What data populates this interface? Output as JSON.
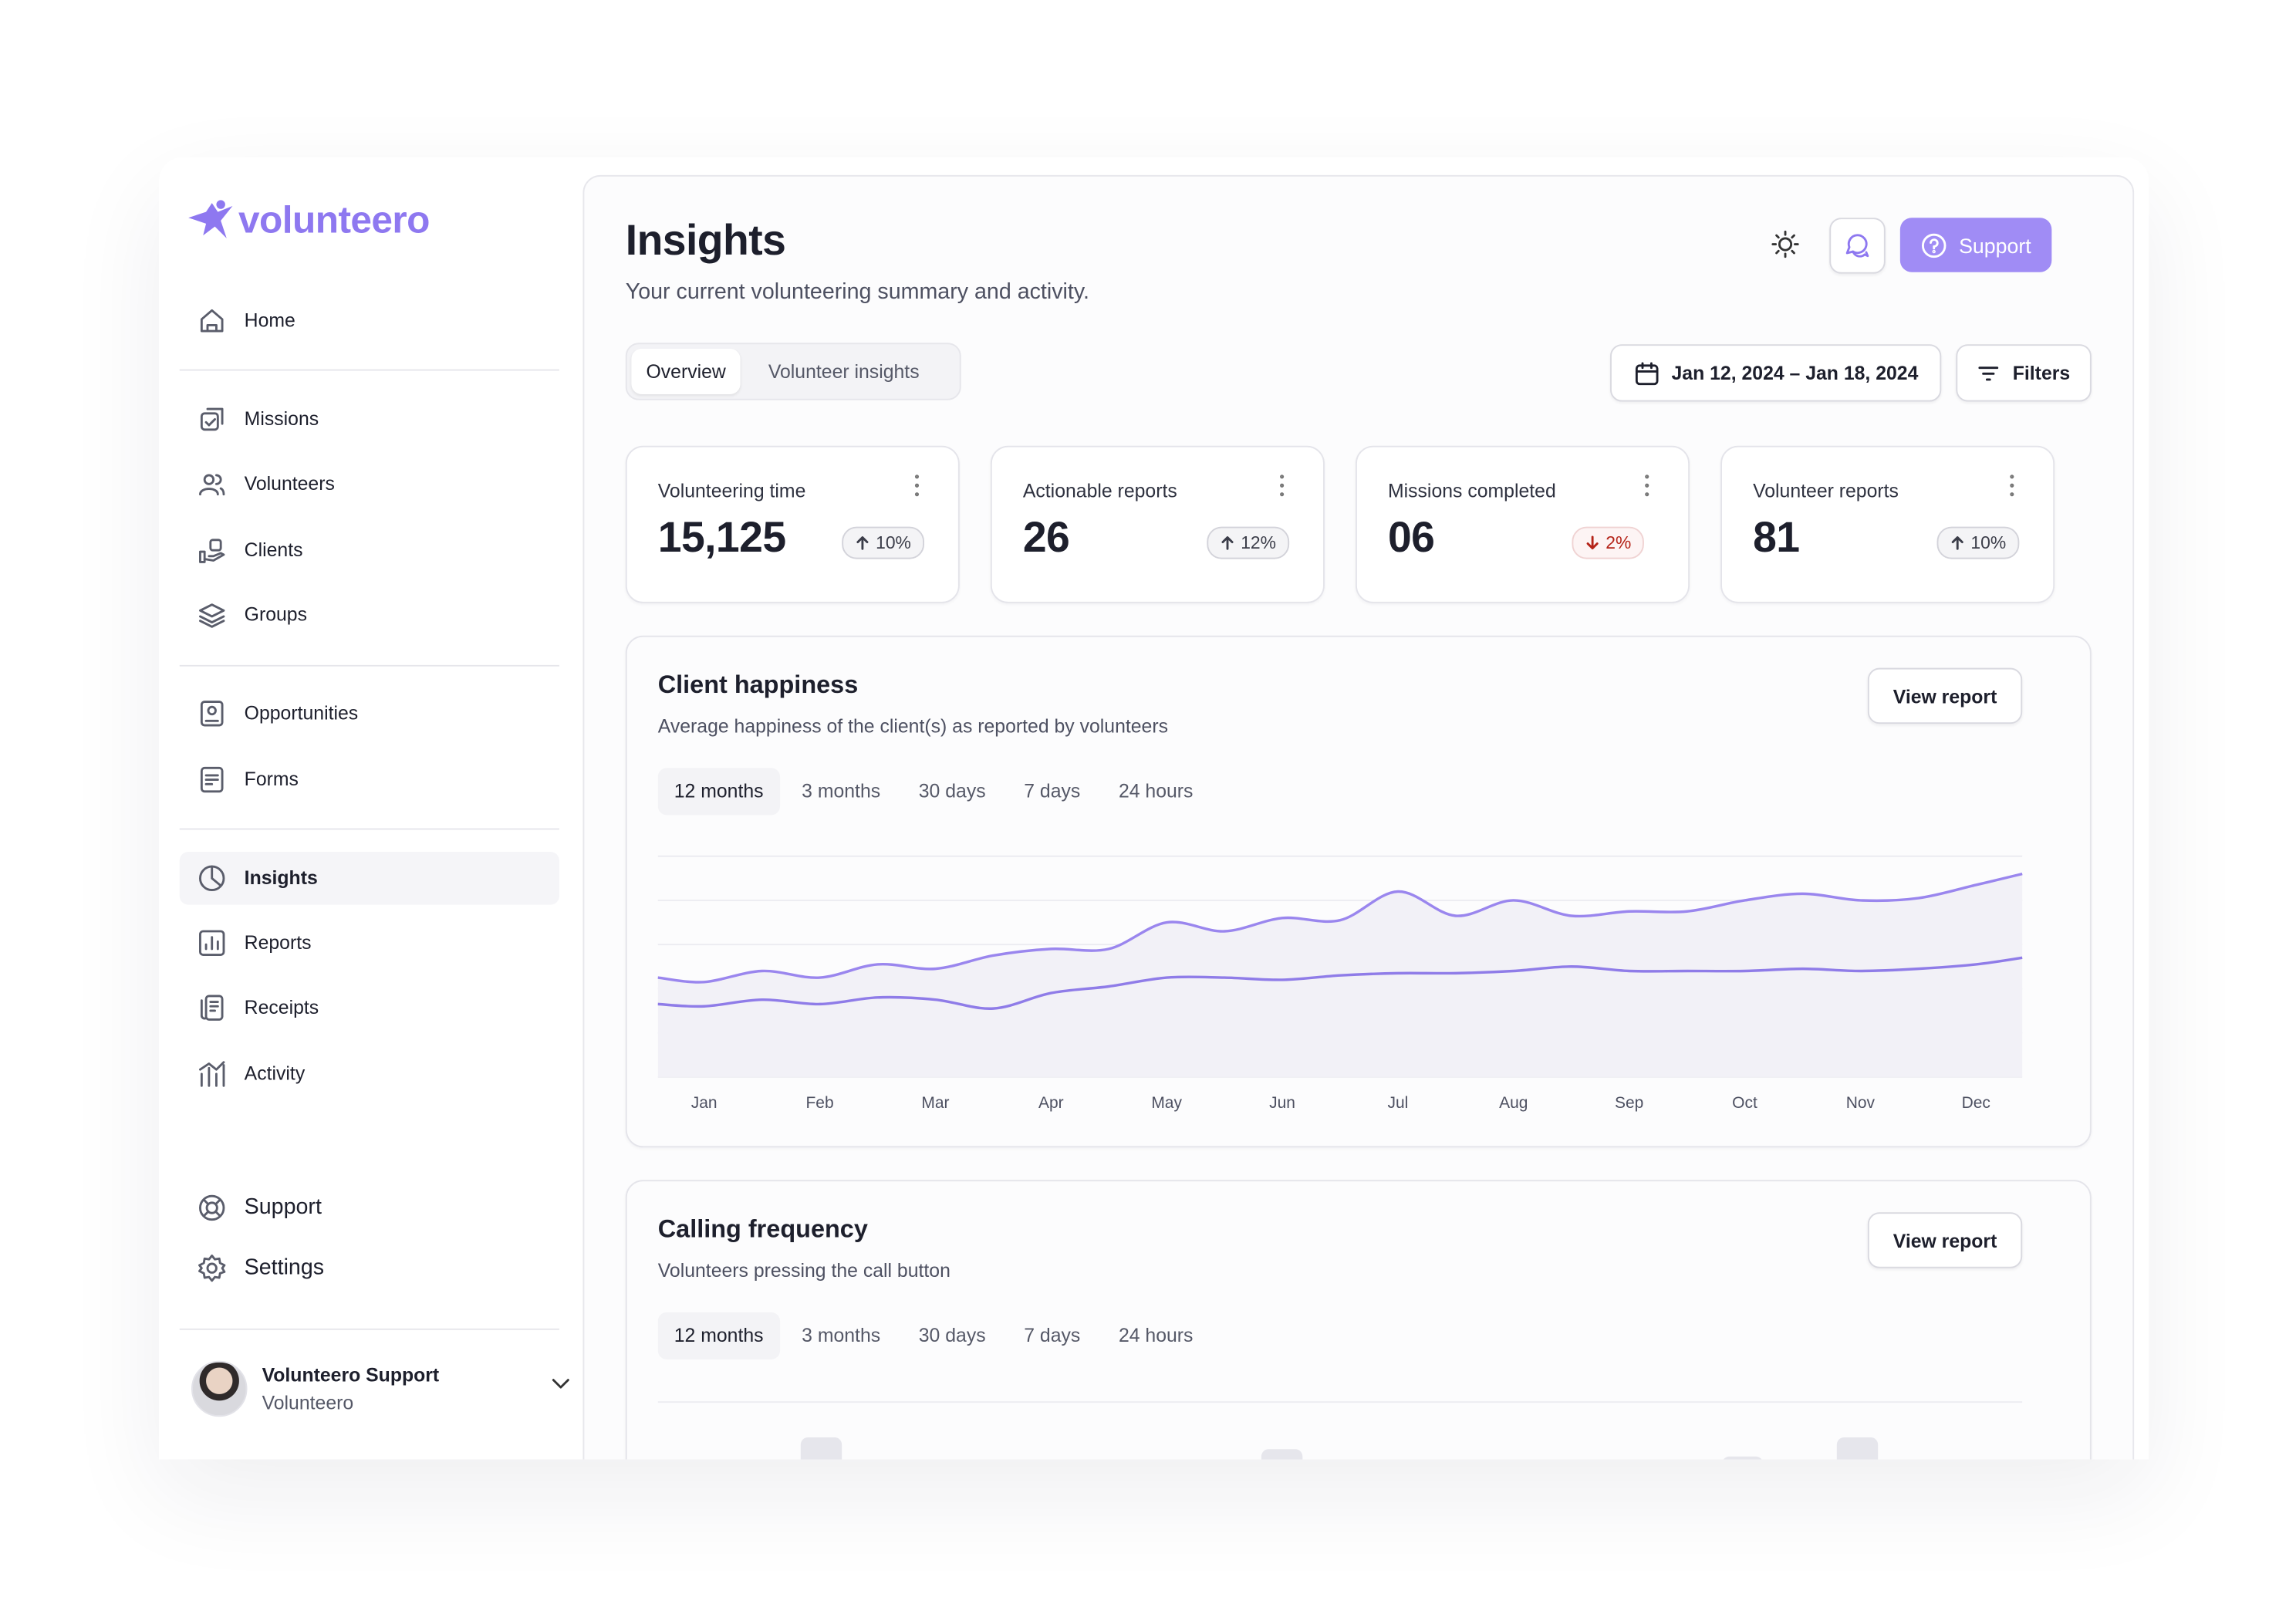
{
  "logo": "volunteero",
  "nav": {
    "items": [
      {
        "label": "Home",
        "group": 0
      },
      {
        "label": "Missions",
        "group": 1
      },
      {
        "label": "Volunteers",
        "group": 1
      },
      {
        "label": "Clients",
        "group": 1
      },
      {
        "label": "Groups",
        "group": 1
      },
      {
        "label": "Opportunities",
        "group": 2
      },
      {
        "label": "Forms",
        "group": 2
      },
      {
        "label": "Insights",
        "group": 3,
        "active": true
      },
      {
        "label": "Reports",
        "group": 3
      },
      {
        "label": "Receipts",
        "group": 3
      },
      {
        "label": "Activity",
        "group": 3
      }
    ],
    "footer": [
      "Support",
      "Settings"
    ]
  },
  "user": {
    "name": "Volunteero Support",
    "role": "Volunteero"
  },
  "header": {
    "title": "Insights",
    "subtitle": "Your current volunteering summary and activity.",
    "support_button": "Support"
  },
  "tabs": {
    "items": [
      "Overview",
      "Volunteer insights"
    ],
    "active": 0
  },
  "date_range": "Jan 12, 2024 – Jan 18, 2024",
  "filters": "Filters",
  "stats": [
    {
      "label": "Volunteering time",
      "value": "15,125",
      "change": "10%",
      "direction": "up"
    },
    {
      "label": "Actionable reports",
      "value": "26",
      "change": "12%",
      "direction": "up"
    },
    {
      "label": "Missions completed",
      "value": "06",
      "change": "2%",
      "direction": "down"
    },
    {
      "label": "Volunteer reports",
      "value": "81",
      "change": "10%",
      "direction": "up"
    }
  ],
  "panels": [
    {
      "title": "Client happiness",
      "subtitle": "Average happiness of the client(s) as reported by volunteers",
      "button": "View report",
      "ranges": {
        "items": [
          "12 months",
          "3 months",
          "30 days",
          "7 days",
          "24 hours"
        ],
        "active": 0
      },
      "chart_data": {
        "type": "line",
        "x": [
          -0.4,
          0,
          0.5,
          1,
          1.5,
          2,
          2.5,
          3,
          3.5,
          4,
          4.5,
          5,
          5.5,
          6,
          6.5,
          7,
          7.5,
          8,
          8.5,
          9,
          9.5,
          10,
          10.5,
          11,
          11.4
        ],
        "xlim": [
          -0.4,
          11.4
        ],
        "xticks": [
          {
            "value": 0,
            "label": "Jan"
          },
          {
            "value": 1,
            "label": "Feb"
          },
          {
            "value": 2,
            "label": "Mar"
          },
          {
            "value": 3,
            "label": "Apr"
          },
          {
            "value": 4,
            "label": "May"
          },
          {
            "value": 5,
            "label": "Jun"
          },
          {
            "value": 6,
            "label": "Jul"
          },
          {
            "value": 7,
            "label": "Aug"
          },
          {
            "value": 8,
            "label": "Sep"
          },
          {
            "value": 9,
            "label": "Oct"
          },
          {
            "value": 10,
            "label": "Nov"
          },
          {
            "value": 11,
            "label": "Dec"
          }
        ],
        "ylim": [
          0,
          100
        ],
        "grid": true,
        "series": [
          {
            "color": "#9a86ee",
            "area": true,
            "values": [
              45,
              43,
              48,
              45,
              51,
              49,
              55,
              58,
              58,
              70,
              66,
              72,
              71,
              84,
              73,
              80,
              73,
              75,
              75,
              80,
              83,
              80,
              81,
              87,
              92
            ]
          },
          {
            "color": "#8f7ce8",
            "area": false,
            "values": [
              33,
              32,
              35,
              33,
              36,
              35,
              31,
              38,
              41,
              45,
              45,
              44,
              46,
              47,
              47,
              48,
              50,
              48,
              48,
              48,
              49,
              48,
              49,
              51,
              54
            ]
          }
        ]
      }
    },
    {
      "title": "Calling frequency",
      "subtitle": "Volunteers pressing the call button",
      "button": "View report",
      "ranges": {
        "items": [
          "12 months",
          "3 months",
          "30 days",
          "7 days",
          "24 hours"
        ],
        "active": 0
      }
    }
  ]
}
